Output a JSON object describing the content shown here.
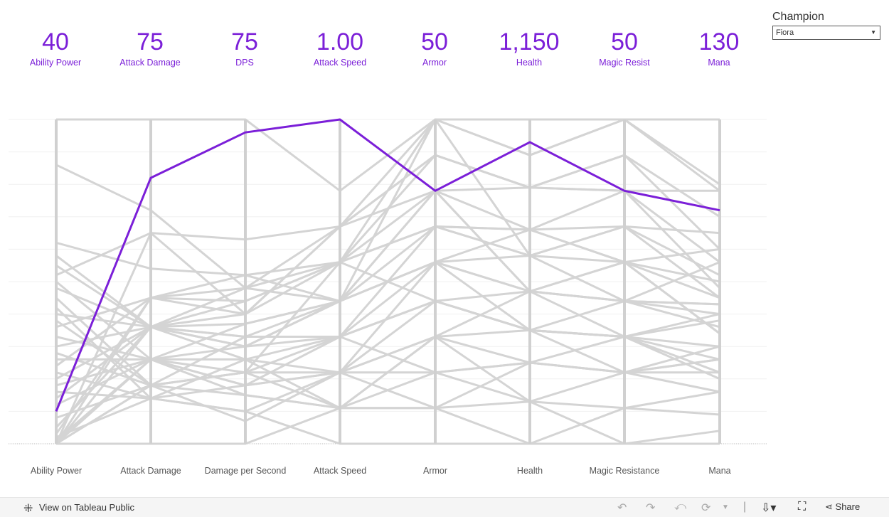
{
  "kpis": [
    {
      "value": "40",
      "label": "Ability Power"
    },
    {
      "value": "75",
      "label": "Attack Damage"
    },
    {
      "value": "75",
      "label": "DPS"
    },
    {
      "value": "1.00",
      "label": "Attack Speed"
    },
    {
      "value": "50",
      "label": "Armor"
    },
    {
      "value": "1,150",
      "label": "Health"
    },
    {
      "value": "50",
      "label": "Magic Resist"
    },
    {
      "value": "130",
      "label": "Mana"
    }
  ],
  "filter": {
    "title": "Champion",
    "selected": "Fiora"
  },
  "footer": {
    "view_link": "View on Tableau Public",
    "share": "Share"
  },
  "colors": {
    "highlight": "#7b1fd8",
    "background_lines": "#d4d4d4",
    "axis": "#d0d0d0"
  },
  "icons": [
    "tableau-logo-icon",
    "undo-icon",
    "redo-icon",
    "revert-icon",
    "refresh-icon",
    "dropdown-icon",
    "download-icon",
    "fullscreen-icon",
    "share-icon"
  ],
  "chart_data": {
    "type": "line",
    "subtype": "parallel-coordinates",
    "categories": [
      "Ability Power",
      "Attack Damage",
      "Damage per Second",
      "Attack Speed",
      "Armor",
      "Health",
      "Magic Resistance",
      "Mana"
    ],
    "value_scale": "normalized 0-1 per axis",
    "highlight": {
      "name": "Fiora",
      "values": [
        0.1,
        0.82,
        0.96,
        1.0,
        0.78,
        0.93,
        0.78,
        0.72
      ]
    },
    "series": [
      {
        "values": [
          1.0,
          1.0,
          1.0,
          0.78,
          1.0,
          1.0,
          1.0,
          1.0
        ]
      },
      {
        "values": [
          0.86,
          0.72,
          0.48,
          0.67,
          0.89,
          0.79,
          0.78,
          0.78
        ]
      },
      {
        "values": [
          0.62,
          0.54,
          0.52,
          0.56,
          0.67,
          0.66,
          0.67,
          0.52
        ]
      },
      {
        "values": [
          0.58,
          0.36,
          0.48,
          0.44,
          0.56,
          0.58,
          0.67,
          0.45
        ]
      },
      {
        "values": [
          0.55,
          0.36,
          0.3,
          0.33,
          0.44,
          0.47,
          0.56,
          0.34
        ]
      },
      {
        "values": [
          0.52,
          0.65,
          0.4,
          0.67,
          0.78,
          0.47,
          0.44,
          0.43
        ]
      },
      {
        "values": [
          0.5,
          0.26,
          0.22,
          0.22,
          0.33,
          0.35,
          0.33,
          0.26
        ]
      },
      {
        "values": [
          0.48,
          0.36,
          0.26,
          0.11,
          0.11,
          0.13,
          0.22,
          0.22
        ]
      },
      {
        "values": [
          0.45,
          0.18,
          0.15,
          0.11,
          0.22,
          0.25,
          0.22,
          0.16
        ]
      },
      {
        "values": [
          0.42,
          0.14,
          0.1,
          0.0,
          0.0,
          0.0,
          0.0,
          0.04
        ]
      },
      {
        "values": [
          0.4,
          0.36,
          0.3,
          0.44,
          0.56,
          0.66,
          0.56,
          0.6
        ]
      },
      {
        "values": [
          0.38,
          0.18,
          0.33,
          0.33,
          0.44,
          0.35,
          0.33,
          0.38
        ]
      },
      {
        "values": [
          0.36,
          0.45,
          0.44,
          0.56,
          0.67,
          0.58,
          0.67,
          0.65
        ]
      },
      {
        "values": [
          0.33,
          0.26,
          0.18,
          0.22,
          0.22,
          0.13,
          0.11,
          0.16
        ]
      },
      {
        "values": [
          0.3,
          0.36,
          0.37,
          0.44,
          0.56,
          0.47,
          0.44,
          0.56
        ]
      },
      {
        "values": [
          0.28,
          0.18,
          0.22,
          0.11,
          0.11,
          0.25,
          0.22,
          0.3
        ]
      },
      {
        "values": [
          0.26,
          0.26,
          0.18,
          0.33,
          0.44,
          0.35,
          0.33,
          0.4
        ]
      },
      {
        "values": [
          0.24,
          0.45,
          0.48,
          0.56,
          0.78,
          0.79,
          0.89,
          0.7
        ]
      },
      {
        "values": [
          0.22,
          0.14,
          0.1,
          0.22,
          0.33,
          0.25,
          0.22,
          0.26
        ]
      },
      {
        "values": [
          0.2,
          0.36,
          0.33,
          0.44,
          0.67,
          0.58,
          0.56,
          0.5
        ]
      },
      {
        "values": [
          0.18,
          0.26,
          0.26,
          0.33,
          0.56,
          0.47,
          0.44,
          0.4
        ]
      },
      {
        "values": [
          0.16,
          0.14,
          0.18,
          0.22,
          0.44,
          0.35,
          0.33,
          0.3
        ]
      },
      {
        "values": [
          0.14,
          0.36,
          0.4,
          0.56,
          0.89,
          0.79,
          0.78,
          0.56
        ]
      },
      {
        "values": [
          0.12,
          0.26,
          0.3,
          0.44,
          1.0,
          0.89,
          1.0,
          0.8
        ]
      },
      {
        "values": [
          0.08,
          0.18,
          0.22,
          0.33,
          0.67,
          0.66,
          0.56,
          0.45
        ]
      },
      {
        "values": [
          0.05,
          0.36,
          0.44,
          0.56,
          1.0,
          0.58,
          0.44,
          0.36
        ]
      },
      {
        "values": [
          0.03,
          0.45,
          0.4,
          0.67,
          0.89,
          0.79,
          0.89,
          0.6
        ]
      },
      {
        "values": [
          0.02,
          0.14,
          0.26,
          0.22,
          0.56,
          0.35,
          0.22,
          0.26
        ]
      },
      {
        "values": [
          0.01,
          0.26,
          0.37,
          0.44,
          0.78,
          0.47,
          0.33,
          0.2
        ]
      },
      {
        "values": [
          0.0,
          0.0,
          0.0,
          0.11,
          0.33,
          0.13,
          0.0,
          0.0
        ]
      },
      {
        "values": [
          0.0,
          0.18,
          0.07,
          0.22,
          0.11,
          0.0,
          0.11,
          0.09
        ]
      },
      {
        "values": [
          0.0,
          0.36,
          0.33,
          0.33,
          0.22,
          0.25,
          0.33,
          0.22
        ]
      },
      {
        "values": [
          0.0,
          0.26,
          0.15,
          0.11,
          0.33,
          0.47,
          0.56,
          0.34
        ]
      },
      {
        "values": [
          0.0,
          0.45,
          0.52,
          0.44,
          0.78,
          0.66,
          0.78,
          0.48
        ]
      },
      {
        "values": [
          0.0,
          0.65,
          0.63,
          0.67,
          1.0,
          0.89,
          1.0,
          0.78
        ]
      },
      {
        "values": [
          0.0,
          0.18,
          0.22,
          0.56,
          0.44,
          0.35,
          0.44,
          0.43
        ]
      }
    ]
  }
}
